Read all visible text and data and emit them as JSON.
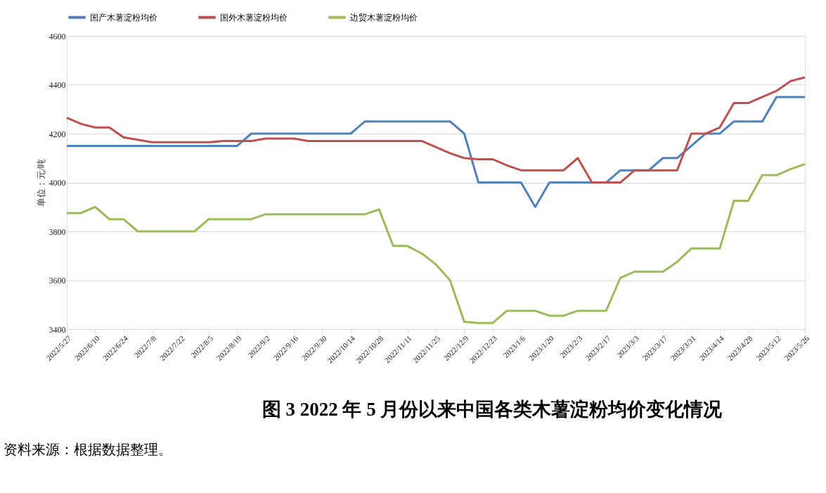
{
  "chart_data": {
    "type": "line",
    "title": "图 3   2022 年 5 月份以来中国各类木薯淀粉均价变化情况",
    "ylabel": "单位：元/吨",
    "annotations": [
      "资料来源：根据数据整理。"
    ],
    "categories": [
      "2022/5/27",
      null,
      "2022/6/10",
      null,
      "2022/6/24",
      null,
      "2022/7/8",
      null,
      "2022/7/22",
      null,
      "2022/8/5",
      null,
      "2022/8/19",
      null,
      "2022/9/2",
      null,
      "2022/9/16",
      null,
      "2022/9/30",
      null,
      "2022/10/14",
      null,
      "2022/10/28",
      null,
      "2022/11/11",
      null,
      "2022/11/25",
      null,
      "2022/12/9",
      null,
      "2022/12/23",
      null,
      "2023/1/6",
      null,
      "2023/1/20",
      null,
      "2023/2/3",
      null,
      "2023/2/17",
      null,
      "2023/3/3",
      null,
      "2023/3/17",
      null,
      "2023/3/31",
      null,
      "2023/4/14",
      null,
      "2023/4/28",
      null,
      "2023/5/12",
      null,
      "2023/5/26"
    ],
    "series": [
      {
        "name": "国产木薯淀粉均价",
        "color": "#4f81bd",
        "values": [
          4150,
          4150,
          4150,
          4150,
          4150,
          4150,
          4150,
          4150,
          4150,
          4150,
          4150,
          4150,
          4150,
          4200,
          4200,
          4200,
          4200,
          4200,
          4200,
          4200,
          4200,
          4250,
          4250,
          4250,
          4250,
          4250,
          4250,
          4250,
          4200,
          4000,
          4000,
          4000,
          4000,
          3900,
          4000,
          4000,
          4000,
          4000,
          4000,
          4050,
          4050,
          4050,
          4100,
          4100,
          4150,
          4200,
          4200,
          4250,
          4250,
          4250,
          4350,
          4350,
          4350
        ]
      },
      {
        "name": "国外木薯淀粉均价",
        "color": "#c0504d",
        "values": [
          4265,
          4240,
          4225,
          4225,
          4185,
          4175,
          4165,
          4165,
          4165,
          4165,
          4165,
          4170,
          4170,
          4170,
          4180,
          4180,
          4180,
          4170,
          4170,
          4170,
          4170,
          4170,
          4170,
          4170,
          4170,
          4170,
          4145,
          4120,
          4100,
          4095,
          4095,
          4070,
          4050,
          4050,
          4050,
          4050,
          4100,
          4000,
          4000,
          4000,
          4050,
          4050,
          4050,
          4050,
          4200,
          4200,
          4225,
          4325,
          4325,
          4350,
          4375,
          4415,
          4430
        ]
      },
      {
        "name": "边贸木薯淀粉均价",
        "color": "#9bbb59",
        "values": [
          3875,
          3875,
          3900,
          3850,
          3850,
          3800,
          3800,
          3800,
          3800,
          3800,
          3850,
          3850,
          3850,
          3850,
          3870,
          3870,
          3870,
          3870,
          3870,
          3870,
          3870,
          3870,
          3890,
          3740,
          3740,
          3710,
          3665,
          3600,
          3430,
          3425,
          3425,
          3475,
          3475,
          3475,
          3455,
          3455,
          3475,
          3475,
          3475,
          3610,
          3635,
          3635,
          3635,
          3675,
          3730,
          3730,
          3730,
          3925,
          3925,
          4030,
          4030,
          4055,
          4075
        ]
      }
    ],
    "ylim": [
      3400,
      4600
    ],
    "yticks": [
      3400,
      3600,
      3800,
      4000,
      4200,
      4400,
      4600
    ],
    "grid": "y",
    "legend": "top",
    "marker": "none",
    "line_style": "solid"
  }
}
